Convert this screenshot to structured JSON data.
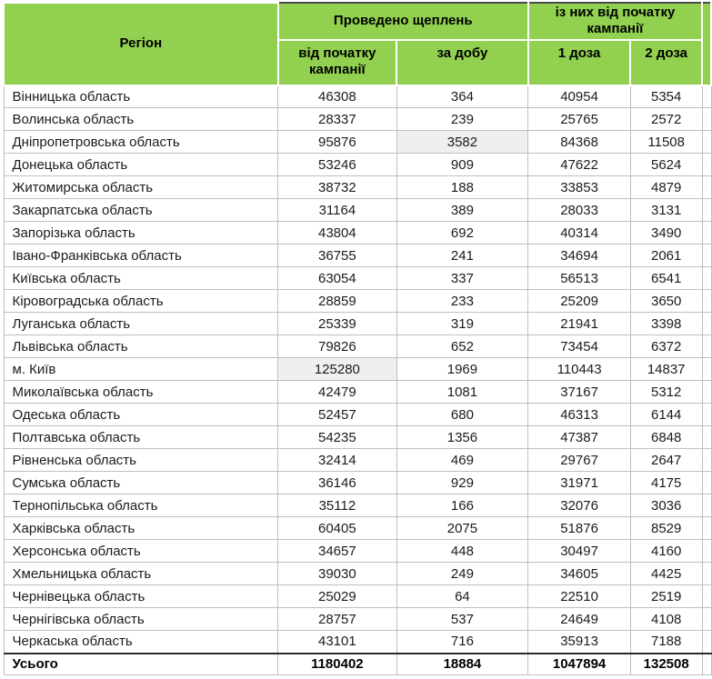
{
  "chart_data": {
    "type": "table",
    "header": {
      "region": "Регіон",
      "group_vaccinations": "Проведено щеплень",
      "group_campaign": "із них від початку кампанії",
      "col_since_start": "від початку кампанії",
      "col_per_day": "за добу",
      "col_dose1": "1 доза",
      "col_dose2": "2 доза"
    },
    "rows": [
      {
        "region": "Вінницька область",
        "since_start": 46308,
        "per_day": 364,
        "dose1": 40954,
        "dose2": 5354
      },
      {
        "region": "Волинська область",
        "since_start": 28337,
        "per_day": 239,
        "dose1": 25765,
        "dose2": 2572
      },
      {
        "region": "Дніпропетровська область",
        "since_start": 95876,
        "per_day": 3582,
        "dose1": 84368,
        "dose2": 11508,
        "highlight": "per_day"
      },
      {
        "region": "Донецька область",
        "since_start": 53246,
        "per_day": 909,
        "dose1": 47622,
        "dose2": 5624
      },
      {
        "region": "Житомирська область",
        "since_start": 38732,
        "per_day": 188,
        "dose1": 33853,
        "dose2": 4879
      },
      {
        "region": "Закарпатська область",
        "since_start": 31164,
        "per_day": 389,
        "dose1": 28033,
        "dose2": 3131
      },
      {
        "region": "Запорізька область",
        "since_start": 43804,
        "per_day": 692,
        "dose1": 40314,
        "dose2": 3490
      },
      {
        "region": "Івано-Франківська область",
        "since_start": 36755,
        "per_day": 241,
        "dose1": 34694,
        "dose2": 2061
      },
      {
        "region": "Київська область",
        "since_start": 63054,
        "per_day": 337,
        "dose1": 56513,
        "dose2": 6541
      },
      {
        "region": "Кіровоградська область",
        "since_start": 28859,
        "per_day": 233,
        "dose1": 25209,
        "dose2": 3650
      },
      {
        "region": "Луганська область",
        "since_start": 25339,
        "per_day": 319,
        "dose1": 21941,
        "dose2": 3398
      },
      {
        "region": "Львівська область",
        "since_start": 79826,
        "per_day": 652,
        "dose1": 73454,
        "dose2": 6372
      },
      {
        "region": "м. Київ",
        "since_start": 125280,
        "per_day": 1969,
        "dose1": 110443,
        "dose2": 14837,
        "highlight": "since_start"
      },
      {
        "region": "Миколаївська область",
        "since_start": 42479,
        "per_day": 1081,
        "dose1": 37167,
        "dose2": 5312
      },
      {
        "region": "Одеська область",
        "since_start": 52457,
        "per_day": 680,
        "dose1": 46313,
        "dose2": 6144
      },
      {
        "region": "Полтавська область",
        "since_start": 54235,
        "per_day": 1356,
        "dose1": 47387,
        "dose2": 6848
      },
      {
        "region": "Рівненська область",
        "since_start": 32414,
        "per_day": 469,
        "dose1": 29767,
        "dose2": 2647
      },
      {
        "region": "Сумська область",
        "since_start": 36146,
        "per_day": 929,
        "dose1": 31971,
        "dose2": 4175
      },
      {
        "region": "Тернопільська область",
        "since_start": 35112,
        "per_day": 166,
        "dose1": 32076,
        "dose2": 3036
      },
      {
        "region": "Харківська область",
        "since_start": 60405,
        "per_day": 2075,
        "dose1": 51876,
        "dose2": 8529
      },
      {
        "region": "Херсонська область",
        "since_start": 34657,
        "per_day": 448,
        "dose1": 30497,
        "dose2": 4160
      },
      {
        "region": "Хмельницька область",
        "since_start": 39030,
        "per_day": 249,
        "dose1": 34605,
        "dose2": 4425
      },
      {
        "region": "Чернівецька область",
        "since_start": 25029,
        "per_day": 64,
        "dose1": 22510,
        "dose2": 2519
      },
      {
        "region": "Чернігівська область",
        "since_start": 28757,
        "per_day": 537,
        "dose1": 24649,
        "dose2": 4108
      },
      {
        "region": "Черкаська область",
        "since_start": 43101,
        "per_day": 716,
        "dose1": 35913,
        "dose2": 7188
      }
    ],
    "totals": {
      "label": "Усього",
      "since_start": 1180402,
      "per_day": 18884,
      "dose1": 1047894,
      "dose2": 132508
    }
  },
  "colors": {
    "header_green": "#92D050",
    "highlight_gray": "#EFEFEF",
    "body_border": "#BFBFBF",
    "total_border": "#2B2B2B"
  }
}
